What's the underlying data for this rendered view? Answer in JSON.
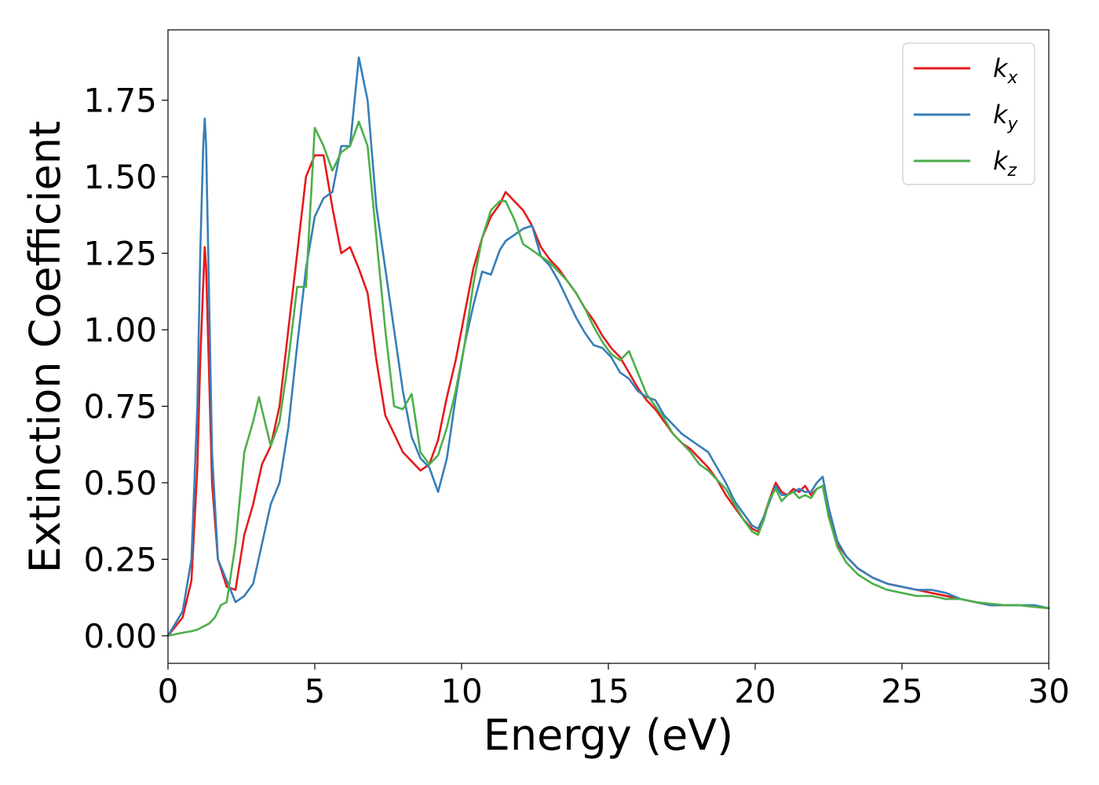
{
  "chart_data": {
    "type": "line",
    "title": "",
    "xlabel": "Energy (eV)",
    "ylabel": "Extinction Coefficient",
    "xlim": [
      0,
      30
    ],
    "ylim": [
      -0.09,
      1.98
    ],
    "xticks": [
      0,
      5,
      10,
      15,
      20,
      25,
      30
    ],
    "xtick_labels": [
      "0",
      "5",
      "10",
      "15",
      "20",
      "25",
      "30"
    ],
    "yticks": [
      0.0,
      0.25,
      0.5,
      0.75,
      1.0,
      1.25,
      1.5,
      1.75
    ],
    "ytick_labels": [
      "0.00",
      "0.25",
      "0.50",
      "0.75",
      "1.00",
      "1.25",
      "1.50",
      "1.75"
    ],
    "grid": false,
    "legend_position": "top-right",
    "series": [
      {
        "name": "k",
        "subscript": "x",
        "color": "#e41a1c",
        "x": [
          0,
          0.5,
          0.8,
          1.0,
          1.1,
          1.2,
          1.25,
          1.3,
          1.4,
          1.5,
          1.7,
          2.0,
          2.3,
          2.6,
          2.9,
          3.2,
          3.5,
          3.8,
          4.1,
          4.4,
          4.7,
          5.0,
          5.3,
          5.6,
          5.9,
          6.2,
          6.5,
          6.8,
          7.1,
          7.4,
          7.7,
          8.0,
          8.3,
          8.6,
          8.9,
          9.2,
          9.5,
          9.8,
          10.1,
          10.4,
          10.7,
          11.0,
          11.3,
          11.5,
          11.8,
          12.1,
          12.4,
          12.7,
          13.0,
          13.3,
          13.6,
          13.9,
          14.2,
          14.5,
          14.8,
          15.1,
          15.4,
          15.7,
          16.0,
          16.3,
          16.6,
          16.9,
          17.2,
          17.5,
          17.8,
          18.1,
          18.4,
          18.7,
          19.0,
          19.3,
          19.6,
          19.9,
          20.1,
          20.3,
          20.5,
          20.7,
          20.9,
          21.1,
          21.3,
          21.5,
          21.7,
          21.9,
          22.1,
          22.3,
          22.5,
          22.8,
          23.1,
          23.5,
          24.0,
          24.5,
          25.0,
          25.5,
          26.0,
          26.5,
          27.0,
          27.5,
          28.0,
          28.5,
          29.0,
          29.5,
          30.0
        ],
        "y": [
          0.0,
          0.06,
          0.18,
          0.55,
          0.9,
          1.15,
          1.27,
          1.2,
          0.85,
          0.5,
          0.25,
          0.16,
          0.15,
          0.33,
          0.43,
          0.56,
          0.62,
          0.75,
          1.0,
          1.25,
          1.5,
          1.57,
          1.57,
          1.4,
          1.25,
          1.27,
          1.2,
          1.12,
          0.9,
          0.72,
          0.66,
          0.6,
          0.57,
          0.54,
          0.56,
          0.64,
          0.78,
          0.9,
          1.05,
          1.2,
          1.3,
          1.37,
          1.41,
          1.45,
          1.42,
          1.39,
          1.34,
          1.27,
          1.23,
          1.2,
          1.16,
          1.12,
          1.07,
          1.03,
          0.98,
          0.94,
          0.91,
          0.86,
          0.81,
          0.77,
          0.74,
          0.7,
          0.66,
          0.63,
          0.61,
          0.58,
          0.55,
          0.51,
          0.46,
          0.42,
          0.38,
          0.35,
          0.34,
          0.39,
          0.45,
          0.5,
          0.47,
          0.46,
          0.48,
          0.47,
          0.49,
          0.46,
          0.48,
          0.49,
          0.4,
          0.3,
          0.26,
          0.22,
          0.19,
          0.17,
          0.16,
          0.15,
          0.14,
          0.13,
          0.12,
          0.11,
          0.1,
          0.1,
          0.1,
          0.095,
          0.09
        ]
      },
      {
        "name": "k",
        "subscript": "y",
        "color": "#377eb8",
        "x": [
          0,
          0.5,
          0.8,
          1.0,
          1.1,
          1.2,
          1.25,
          1.3,
          1.4,
          1.5,
          1.7,
          2.0,
          2.3,
          2.6,
          2.9,
          3.2,
          3.5,
          3.8,
          4.1,
          4.4,
          4.7,
          5.0,
          5.3,
          5.6,
          5.9,
          6.2,
          6.5,
          6.8,
          7.1,
          7.4,
          7.7,
          8.0,
          8.3,
          8.6,
          8.9,
          9.2,
          9.5,
          9.8,
          10.1,
          10.4,
          10.7,
          11.0,
          11.3,
          11.5,
          11.8,
          12.1,
          12.4,
          12.7,
          13.0,
          13.3,
          13.6,
          13.9,
          14.2,
          14.5,
          14.8,
          15.1,
          15.4,
          15.7,
          16.0,
          16.3,
          16.6,
          16.9,
          17.2,
          17.5,
          17.8,
          18.1,
          18.4,
          18.7,
          19.0,
          19.3,
          19.6,
          19.9,
          20.1,
          20.3,
          20.5,
          20.7,
          20.9,
          21.1,
          21.3,
          21.5,
          21.7,
          21.9,
          22.1,
          22.3,
          22.5,
          22.8,
          23.1,
          23.5,
          24.0,
          24.5,
          25.0,
          25.5,
          26.0,
          26.5,
          27.0,
          27.5,
          28.0,
          28.5,
          29.0,
          29.5,
          30.0
        ],
        "y": [
          0.0,
          0.08,
          0.25,
          0.75,
          1.25,
          1.6,
          1.69,
          1.6,
          1.1,
          0.6,
          0.25,
          0.18,
          0.11,
          0.13,
          0.17,
          0.3,
          0.43,
          0.5,
          0.68,
          0.95,
          1.2,
          1.37,
          1.43,
          1.45,
          1.6,
          1.6,
          1.89,
          1.75,
          1.4,
          1.2,
          1.0,
          0.8,
          0.65,
          0.58,
          0.55,
          0.47,
          0.58,
          0.78,
          0.95,
          1.08,
          1.19,
          1.18,
          1.26,
          1.29,
          1.31,
          1.33,
          1.34,
          1.24,
          1.21,
          1.16,
          1.1,
          1.04,
          0.99,
          0.95,
          0.94,
          0.91,
          0.86,
          0.84,
          0.8,
          0.78,
          0.77,
          0.72,
          0.69,
          0.66,
          0.64,
          0.62,
          0.6,
          0.55,
          0.5,
          0.44,
          0.4,
          0.36,
          0.35,
          0.39,
          0.44,
          0.49,
          0.46,
          0.46,
          0.47,
          0.48,
          0.47,
          0.47,
          0.5,
          0.52,
          0.42,
          0.31,
          0.26,
          0.22,
          0.19,
          0.17,
          0.16,
          0.15,
          0.15,
          0.14,
          0.12,
          0.11,
          0.1,
          0.1,
          0.1,
          0.1,
          0.09
        ]
      },
      {
        "name": "k",
        "subscript": "z",
        "color": "#4daf4a",
        "x": [
          0,
          0.5,
          0.8,
          1.0,
          1.2,
          1.4,
          1.6,
          1.8,
          2.0,
          2.3,
          2.6,
          2.9,
          3.1,
          3.3,
          3.5,
          3.8,
          4.1,
          4.4,
          4.7,
          5.0,
          5.3,
          5.6,
          5.9,
          6.2,
          6.5,
          6.8,
          7.1,
          7.4,
          7.7,
          8.0,
          8.3,
          8.6,
          8.9,
          9.2,
          9.5,
          9.8,
          10.1,
          10.4,
          10.7,
          11.0,
          11.3,
          11.5,
          11.8,
          12.1,
          12.4,
          12.7,
          13.0,
          13.3,
          13.6,
          13.9,
          14.2,
          14.5,
          14.8,
          15.1,
          15.4,
          15.7,
          16.0,
          16.3,
          16.6,
          16.9,
          17.2,
          17.5,
          17.8,
          18.1,
          18.4,
          18.7,
          19.0,
          19.3,
          19.6,
          19.9,
          20.1,
          20.3,
          20.5,
          20.7,
          20.9,
          21.1,
          21.3,
          21.5,
          21.7,
          21.9,
          22.1,
          22.3,
          22.5,
          22.8,
          23.1,
          23.5,
          24.0,
          24.5,
          25.0,
          25.5,
          26.0,
          26.5,
          27.0,
          27.5,
          28.0,
          28.5,
          29.0,
          29.5,
          30.0
        ],
        "y": [
          0.0,
          0.01,
          0.015,
          0.02,
          0.03,
          0.04,
          0.06,
          0.1,
          0.11,
          0.3,
          0.6,
          0.7,
          0.78,
          0.7,
          0.62,
          0.7,
          0.9,
          1.14,
          1.14,
          1.66,
          1.6,
          1.52,
          1.58,
          1.6,
          1.68,
          1.6,
          1.3,
          1.0,
          0.75,
          0.74,
          0.79,
          0.6,
          0.56,
          0.59,
          0.68,
          0.8,
          0.95,
          1.15,
          1.3,
          1.39,
          1.42,
          1.42,
          1.36,
          1.28,
          1.26,
          1.24,
          1.22,
          1.19,
          1.16,
          1.12,
          1.07,
          1.01,
          0.96,
          0.92,
          0.9,
          0.93,
          0.86,
          0.79,
          0.75,
          0.71,
          0.66,
          0.63,
          0.6,
          0.56,
          0.54,
          0.51,
          0.48,
          0.43,
          0.38,
          0.34,
          0.33,
          0.38,
          0.45,
          0.48,
          0.44,
          0.46,
          0.47,
          0.45,
          0.46,
          0.45,
          0.48,
          0.49,
          0.39,
          0.29,
          0.24,
          0.2,
          0.17,
          0.15,
          0.14,
          0.13,
          0.13,
          0.12,
          0.12,
          0.11,
          0.105,
          0.1,
          0.1,
          0.095,
          0.09
        ]
      }
    ]
  }
}
